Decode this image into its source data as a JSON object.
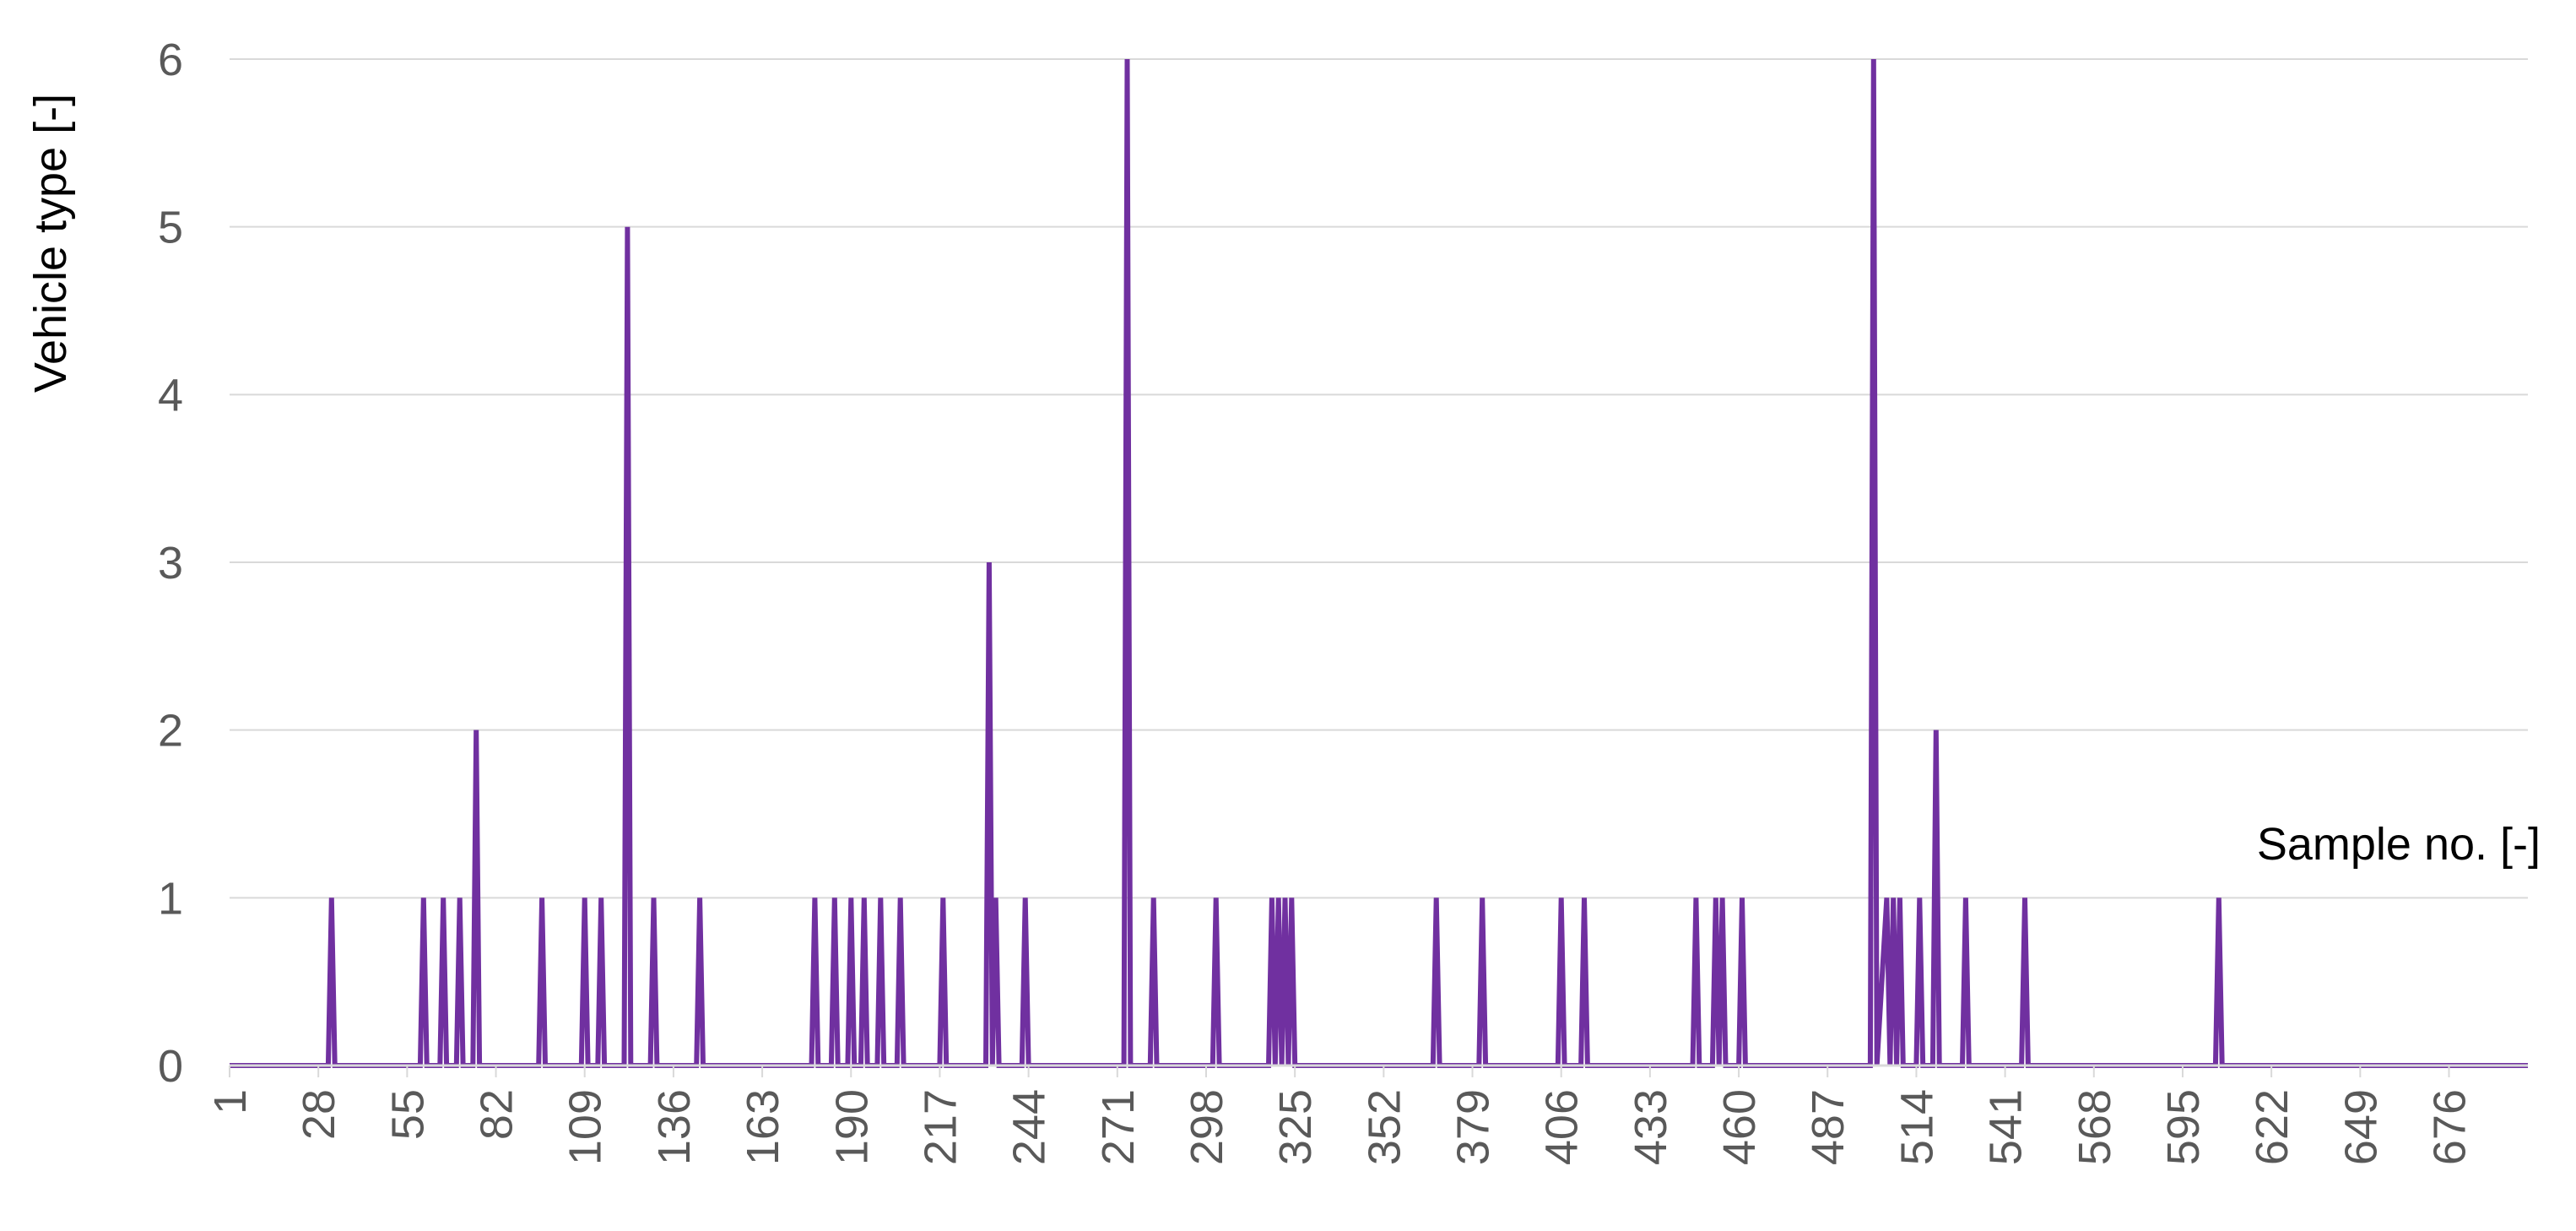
{
  "chart_data": {
    "type": "line",
    "xlabel": "Sample no. [-]",
    "ylabel": "Vehicle type [-]",
    "ylim": [
      0,
      6
    ],
    "yticks": [
      "0",
      "1",
      "2",
      "3",
      "4",
      "5",
      "6"
    ],
    "xlim": [
      1,
      700
    ],
    "xticks": [
      "1",
      "28",
      "55",
      "82",
      "109",
      "136",
      "163",
      "190",
      "217",
      "244",
      "271",
      "298",
      "325",
      "352",
      "379",
      "406",
      "433",
      "460",
      "487",
      "514",
      "541",
      "568",
      "595",
      "622",
      "649",
      "676"
    ],
    "grid": "horizontal",
    "legend": "none",
    "color": "#7030a0",
    "series": [
      {
        "points": [
          [
            1,
            0
          ],
          [
            31,
            0
          ],
          [
            32,
            1
          ],
          [
            33,
            0
          ],
          [
            59,
            0
          ],
          [
            60,
            1
          ],
          [
            61,
            0
          ],
          [
            65,
            0
          ],
          [
            66,
            1
          ],
          [
            67,
            0
          ],
          [
            70,
            0
          ],
          [
            71,
            1
          ],
          [
            72,
            0
          ],
          [
            75,
            0
          ],
          [
            76,
            2
          ],
          [
            77,
            0
          ],
          [
            95,
            0
          ],
          [
            96,
            1
          ],
          [
            97,
            0
          ],
          [
            108,
            0
          ],
          [
            109,
            1
          ],
          [
            110,
            0
          ],
          [
            113,
            0
          ],
          [
            114,
            1
          ],
          [
            115,
            0
          ],
          [
            121,
            0
          ],
          [
            122,
            5
          ],
          [
            123,
            0
          ],
          [
            129,
            0
          ],
          [
            130,
            1
          ],
          [
            131,
            0
          ],
          [
            143,
            0
          ],
          [
            144,
            1
          ],
          [
            145,
            0
          ],
          [
            178,
            0
          ],
          [
            179,
            1
          ],
          [
            180,
            0
          ],
          [
            184,
            0
          ],
          [
            185,
            1
          ],
          [
            186,
            0
          ],
          [
            189,
            0
          ],
          [
            190,
            1
          ],
          [
            191,
            0
          ],
          [
            193,
            0
          ],
          [
            194,
            1
          ],
          [
            195,
            0
          ],
          [
            198,
            0
          ],
          [
            199,
            1
          ],
          [
            200,
            0
          ],
          [
            204,
            0
          ],
          [
            205,
            1
          ],
          [
            206,
            0
          ],
          [
            217,
            0
          ],
          [
            218,
            1
          ],
          [
            219,
            0
          ],
          [
            231,
            0
          ],
          [
            232,
            3
          ],
          [
            233,
            0
          ],
          [
            234,
            1
          ],
          [
            235,
            0
          ],
          [
            242,
            0
          ],
          [
            243,
            1
          ],
          [
            244,
            0
          ],
          [
            273,
            0
          ],
          [
            274,
            6
          ],
          [
            275,
            0
          ],
          [
            281,
            0
          ],
          [
            282,
            1
          ],
          [
            283,
            0
          ],
          [
            300,
            0
          ],
          [
            301,
            1
          ],
          [
            302,
            0
          ],
          [
            317,
            0
          ],
          [
            318,
            1
          ],
          [
            319,
            0
          ],
          [
            320,
            1
          ],
          [
            321,
            0
          ],
          [
            322,
            1
          ],
          [
            323,
            0
          ],
          [
            324,
            1
          ],
          [
            325,
            0
          ],
          [
            367,
            0
          ],
          [
            368,
            1
          ],
          [
            369,
            0
          ],
          [
            381,
            0
          ],
          [
            382,
            1
          ],
          [
            383,
            0
          ],
          [
            405,
            0
          ],
          [
            406,
            1
          ],
          [
            407,
            0
          ],
          [
            412,
            0
          ],
          [
            413,
            1
          ],
          [
            414,
            0
          ],
          [
            446,
            0
          ],
          [
            447,
            1
          ],
          [
            448,
            0
          ],
          [
            452,
            0
          ],
          [
            453,
            1
          ],
          [
            454,
            0
          ],
          [
            455,
            1
          ],
          [
            456,
            0
          ],
          [
            460,
            0
          ],
          [
            461,
            1
          ],
          [
            462,
            0
          ],
          [
            500,
            0
          ],
          [
            501,
            6
          ],
          [
            502,
            0
          ],
          [
            505,
            1
          ],
          [
            506,
            0
          ],
          [
            507,
            1
          ],
          [
            508,
            0
          ],
          [
            509,
            1
          ],
          [
            510,
            0
          ],
          [
            514,
            0
          ],
          [
            515,
            1
          ],
          [
            516,
            0
          ],
          [
            519,
            0
          ],
          [
            520,
            2
          ],
          [
            521,
            0
          ],
          [
            528,
            0
          ],
          [
            529,
            1
          ],
          [
            530,
            0
          ],
          [
            546,
            0
          ],
          [
            547,
            1
          ],
          [
            548,
            0
          ],
          [
            605,
            0
          ],
          [
            606,
            1
          ],
          [
            607,
            0
          ],
          [
            700,
            0
          ]
        ]
      }
    ]
  }
}
